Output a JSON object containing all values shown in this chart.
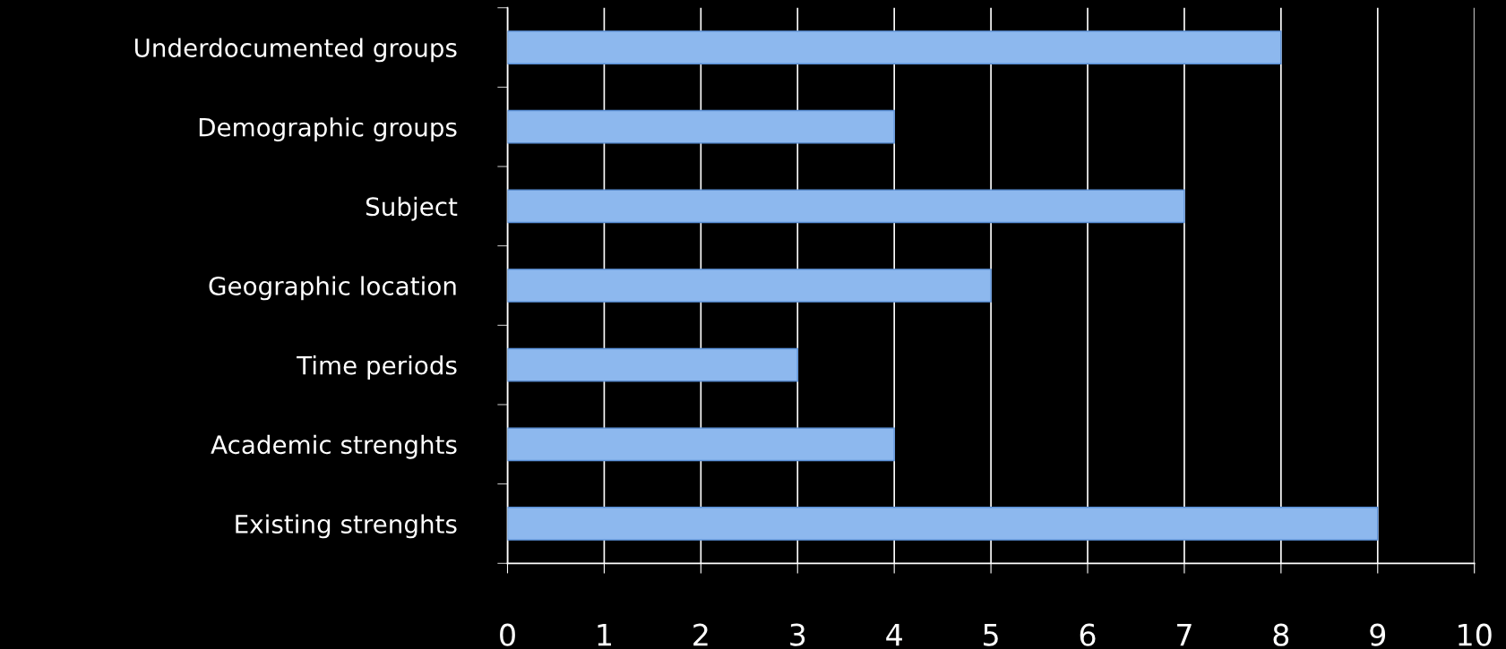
{
  "chart_data": {
    "type": "bar",
    "orientation": "horizontal",
    "categories": [
      "Underdocumented groups",
      "Demographic groups",
      "Subject",
      "Geographic location",
      "Time periods",
      "Academic strenghts",
      "Existing strenghts"
    ],
    "values": [
      8,
      4,
      7,
      5,
      3,
      4,
      9
    ],
    "color": "#8db8ee",
    "xlim": [
      0,
      10
    ],
    "xticks": [
      0,
      1,
      2,
      3,
      4,
      5,
      6,
      7,
      8,
      9,
      10
    ],
    "grid": "x",
    "legend": false
  }
}
